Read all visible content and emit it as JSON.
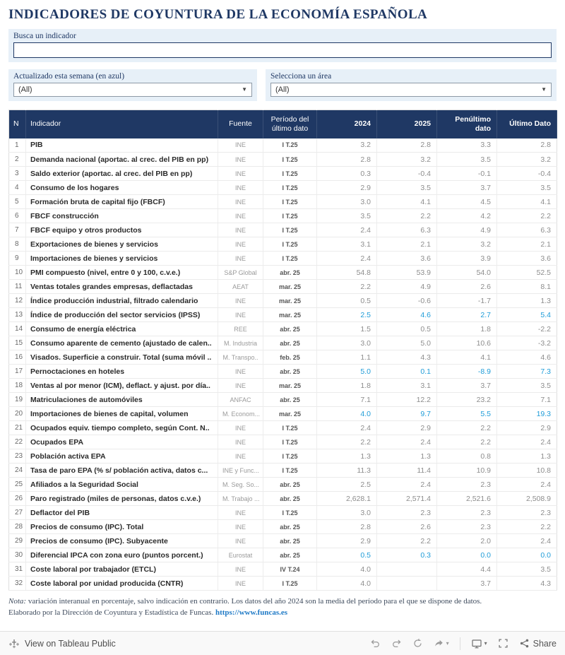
{
  "title": "INDICADORES DE COYUNTURA DE LA ECONOMÍA ESPAÑOLA",
  "search": {
    "label": "Busca un indicador",
    "value": ""
  },
  "filters": [
    {
      "label": "Actualizado esta semana (en azul)",
      "value": "(All)"
    },
    {
      "label": "Selecciona un área",
      "value": "(All)"
    }
  ],
  "table": {
    "headers": [
      "N",
      "Indicador",
      "Fuente",
      "Período del último dato",
      "2024",
      "2025",
      "Penúltimo dato",
      "Último Dato"
    ],
    "rows": [
      {
        "n": "1",
        "name": "PIB",
        "src": "INE",
        "period": "I T.25",
        "y24": "3.2",
        "y25": "2.8",
        "pen": "3.3",
        "last": "2.8",
        "hl": false
      },
      {
        "n": "2",
        "name": "Demanda nacional (aportac. al crec. del PIB en pp)",
        "src": "INE",
        "period": "I T.25",
        "y24": "2.8",
        "y25": "3.2",
        "pen": "3.5",
        "last": "3.2",
        "hl": false
      },
      {
        "n": "3",
        "name": "Saldo exterior (aportac. al crec. del PIB en pp)",
        "src": "INE",
        "period": "I T.25",
        "y24": "0.3",
        "y25": "-0.4",
        "pen": "-0.1",
        "last": "-0.4",
        "hl": false
      },
      {
        "n": "4",
        "name": "Consumo de los hogares",
        "src": "INE",
        "period": "I T.25",
        "y24": "2.9",
        "y25": "3.5",
        "pen": "3.7",
        "last": "3.5",
        "hl": false
      },
      {
        "n": "5",
        "name": "Formación bruta de capital fijo (FBCF)",
        "src": "INE",
        "period": "I T.25",
        "y24": "3.0",
        "y25": "4.1",
        "pen": "4.5",
        "last": "4.1",
        "hl": false
      },
      {
        "n": "6",
        "name": "FBCF construcción",
        "src": "INE",
        "period": "I T.25",
        "y24": "3.5",
        "y25": "2.2",
        "pen": "4.2",
        "last": "2.2",
        "hl": false
      },
      {
        "n": "7",
        "name": "FBCF equipo y otros productos",
        "src": "INE",
        "period": "I T.25",
        "y24": "2.4",
        "y25": "6.3",
        "pen": "4.9",
        "last": "6.3",
        "hl": false
      },
      {
        "n": "8",
        "name": "Exportaciones de bienes y servicios",
        "src": "INE",
        "period": "I T.25",
        "y24": "3.1",
        "y25": "2.1",
        "pen": "3.2",
        "last": "2.1",
        "hl": false
      },
      {
        "n": "9",
        "name": "Importaciones de bienes y servicios",
        "src": "INE",
        "period": "I T.25",
        "y24": "2.4",
        "y25": "3.6",
        "pen": "3.9",
        "last": "3.6",
        "hl": false
      },
      {
        "n": "10",
        "name": "PMI compuesto (nivel, entre 0 y 100, c.v.e.)",
        "src": "S&P Global",
        "period": "abr. 25",
        "y24": "54.8",
        "y25": "53.9",
        "pen": "54.0",
        "last": "52.5",
        "hl": false
      },
      {
        "n": "11",
        "name": "Ventas totales grandes empresas, deflactadas",
        "src": "AEAT",
        "period": "mar. 25",
        "y24": "2.2",
        "y25": "4.9",
        "pen": "2.6",
        "last": "8.1",
        "hl": false
      },
      {
        "n": "12",
        "name": "Índice producción industrial, filtrado calendario",
        "src": "INE",
        "period": "mar. 25",
        "y24": "0.5",
        "y25": "-0.6",
        "pen": "-1.7",
        "last": "1.3",
        "hl": false
      },
      {
        "n": "13",
        "name": "Índice de producción del sector servicios (IPSS)",
        "src": "INE",
        "period": "mar. 25",
        "y24": "2.5",
        "y25": "4.6",
        "pen": "2.7",
        "last": "5.4",
        "hl": true
      },
      {
        "n": "14",
        "name": "Consumo de energía eléctrica",
        "src": "REE",
        "period": "abr. 25",
        "y24": "1.5",
        "y25": "0.5",
        "pen": "1.8",
        "last": "-2.2",
        "hl": false
      },
      {
        "n": "15",
        "name": "Consumo aparente de cemento (ajustado de calen..",
        "src": "M. Industria",
        "period": "abr. 25",
        "y24": "3.0",
        "y25": "5.0",
        "pen": "10.6",
        "last": "-3.2",
        "hl": false
      },
      {
        "n": "16",
        "name": "Visados. Superficie a construir. Total (suma móvil ..",
        "src": "M. Transpo..",
        "period": "feb. 25",
        "y24": "1.1",
        "y25": "4.3",
        "pen": "4.1",
        "last": "4.6",
        "hl": false
      },
      {
        "n": "17",
        "name": "Pernoctaciones en hoteles",
        "src": "INE",
        "period": "abr. 25",
        "y24": "5.0",
        "y25": "0.1",
        "pen": "-8.9",
        "last": "7.3",
        "hl": true
      },
      {
        "n": "18",
        "name": "Ventas al por menor (ICM), deflact. y ajust. por día..",
        "src": "INE",
        "period": "mar. 25",
        "y24": "1.8",
        "y25": "3.1",
        "pen": "3.7",
        "last": "3.5",
        "hl": false
      },
      {
        "n": "19",
        "name": "Matriculaciones de automóviles",
        "src": "ANFAC",
        "period": "abr. 25",
        "y24": "7.1",
        "y25": "12.2",
        "pen": "23.2",
        "last": "7.1",
        "hl": false
      },
      {
        "n": "20",
        "name": "Importaciones de bienes de capital, volumen",
        "src": "M. Econom...",
        "period": "mar. 25",
        "y24": "4.0",
        "y25": "9.7",
        "pen": "5.5",
        "last": "19.3",
        "hl": true
      },
      {
        "n": "21",
        "name": "Ocupados equiv. tiempo completo, según Cont. N..",
        "src": "INE",
        "period": "I T.25",
        "y24": "2.4",
        "y25": "2.9",
        "pen": "2.2",
        "last": "2.9",
        "hl": false
      },
      {
        "n": "22",
        "name": "Ocupados EPA",
        "src": "INE",
        "period": "I T.25",
        "y24": "2.2",
        "y25": "2.4",
        "pen": "2.2",
        "last": "2.4",
        "hl": false
      },
      {
        "n": "23",
        "name": "Población activa EPA",
        "src": "INE",
        "period": "I T.25",
        "y24": "1.3",
        "y25": "1.3",
        "pen": "0.8",
        "last": "1.3",
        "hl": false
      },
      {
        "n": "24",
        "name": "Tasa de paro EPA (% s/ población activa, datos c...",
        "src": "INE y Func...",
        "period": "I T.25",
        "y24": "11.3",
        "y25": "11.4",
        "pen": "10.9",
        "last": "10.8",
        "hl": false
      },
      {
        "n": "25",
        "name": "Afiliados a la Seguridad Social",
        "src": "M. Seg. So...",
        "period": "abr. 25",
        "y24": "2.5",
        "y25": "2.4",
        "pen": "2.3",
        "last": "2.4",
        "hl": false
      },
      {
        "n": "26",
        "name": "Paro registrado (miles de personas, datos c.v.e.)",
        "src": "M. Trabajo ...",
        "period": "abr. 25",
        "y24": "2,628.1",
        "y25": "2,571.4",
        "pen": "2,521.6",
        "last": "2,508.9",
        "hl": false
      },
      {
        "n": "27",
        "name": "Deflactor del PIB",
        "src": "INE",
        "period": "I T.25",
        "y24": "3.0",
        "y25": "2.3",
        "pen": "2.3",
        "last": "2.3",
        "hl": false
      },
      {
        "n": "28",
        "name": "Precios de consumo (IPC). Total",
        "src": "INE",
        "period": "abr. 25",
        "y24": "2.8",
        "y25": "2.6",
        "pen": "2.3",
        "last": "2.2",
        "hl": false
      },
      {
        "n": "29",
        "name": "Precios de consumo (IPC). Subyacente",
        "src": "INE",
        "period": "abr. 25",
        "y24": "2.9",
        "y25": "2.2",
        "pen": "2.0",
        "last": "2.4",
        "hl": false
      },
      {
        "n": "30",
        "name": "Diferencial IPCA con zona euro (puntos porcent.)",
        "src": "Eurostat",
        "period": "abr. 25",
        "y24": "0.5",
        "y25": "0.3",
        "pen": "0.0",
        "last": "0.0",
        "hl": true
      },
      {
        "n": "31",
        "name": "Coste laboral por trabajador (ETCL)",
        "src": "INE",
        "period": "IV T.24",
        "y24": "4.0",
        "y25": "",
        "pen": "4.4",
        "last": "3.5",
        "hl": false
      },
      {
        "n": "32",
        "name": "Coste laboral por unidad producida (CNTR)",
        "src": "INE",
        "period": "I T.25",
        "y24": "4.0",
        "y25": "",
        "pen": "3.7",
        "last": "4.3",
        "hl": false
      }
    ]
  },
  "footer": {
    "note_label": "Nota:",
    "note_text": " variación interanual en porcentaje, salvo indicación en contrario. Los datos del año 2024 son la media del período para el que se dispone de datos.",
    "line2": "Elaborado por la Dirección de Coyuntura y Estadística de Funcas. ",
    "link": "https://www.funcas.es"
  },
  "toolbar": {
    "view_label": "View on Tableau Public",
    "share_label": "Share",
    "icons": [
      "tableau-logo",
      "undo",
      "redo",
      "replay",
      "forward",
      "download",
      "fullscreen",
      "share"
    ]
  },
  "colors": {
    "navy": "#1f3864",
    "highlight_blue": "#1e9cd8",
    "panel_blue": "#e7f0f8"
  }
}
